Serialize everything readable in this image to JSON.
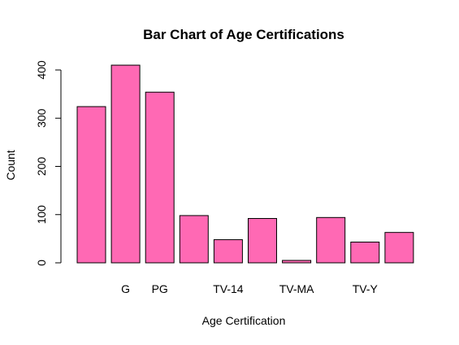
{
  "chart_data": {
    "type": "bar",
    "title": "Bar Chart of Age Certifications",
    "xlabel": "Age Certification",
    "ylabel": "Count",
    "categories": [
      "",
      "G",
      "PG",
      "",
      "TV-14",
      "",
      "TV-MA",
      "",
      "TV-Y",
      ""
    ],
    "values": [
      324,
      410,
      354,
      98,
      48,
      92,
      5,
      94,
      43,
      63
    ],
    "ylim": [
      0,
      420
    ],
    "yticks": [
      0,
      100,
      200,
      300,
      400
    ],
    "bar_color": "#ff69b4",
    "bar_border_color": "#000000",
    "grid": false,
    "legend": "none"
  }
}
